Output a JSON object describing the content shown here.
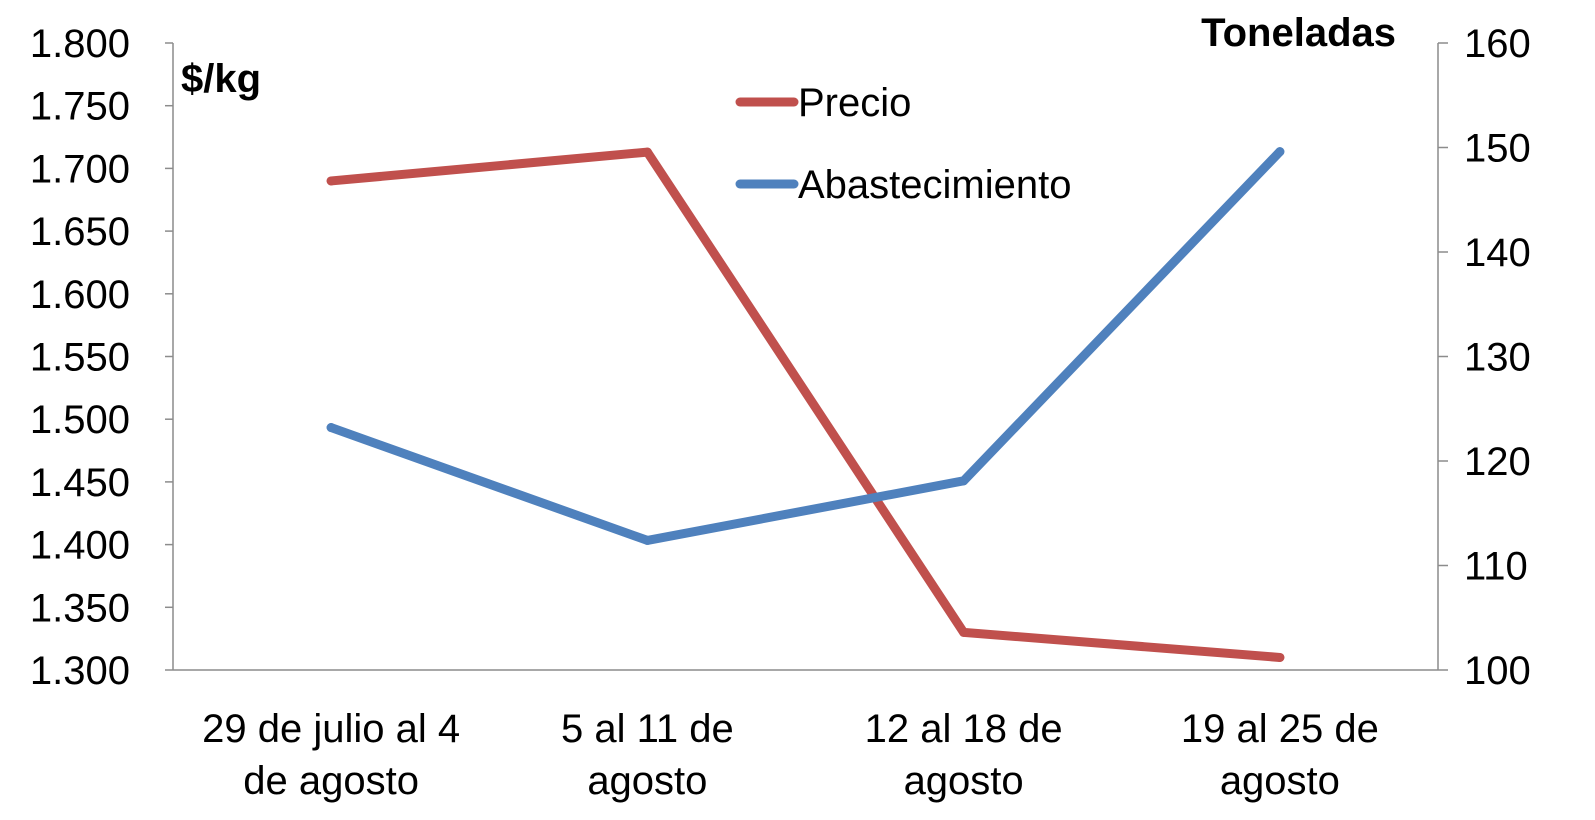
{
  "chart_data": {
    "type": "line",
    "categories": [
      [
        "29 de julio al 4",
        "de agosto"
      ],
      [
        "5 al 11 de",
        "agosto"
      ],
      [
        "12 al 18 de",
        "agosto"
      ],
      [
        "19 al 25 de",
        "agosto"
      ]
    ],
    "y_left": {
      "label": "$/kg",
      "range": [
        1300,
        1800
      ],
      "ticks": [
        "1.300",
        "1.350",
        "1.400",
        "1.450",
        "1.500",
        "1.550",
        "1.600",
        "1.650",
        "1.700",
        "1.750",
        "1.800"
      ]
    },
    "y_right": {
      "label": "Toneladas",
      "range": [
        100,
        160
      ],
      "ticks": [
        "100",
        "110",
        "120",
        "130",
        "140",
        "150",
        "160"
      ]
    },
    "series": [
      {
        "name": "Precio",
        "axis": "left",
        "color": "#c0504d",
        "values": [
          1690,
          1713,
          1330,
          1310
        ]
      },
      {
        "name": "Abastecimiento",
        "axis": "right",
        "color": "#4f81bd",
        "values": [
          123.2,
          112.4,
          118.1,
          149.6
        ]
      }
    ],
    "legend_position": "top-center",
    "grid": false
  }
}
